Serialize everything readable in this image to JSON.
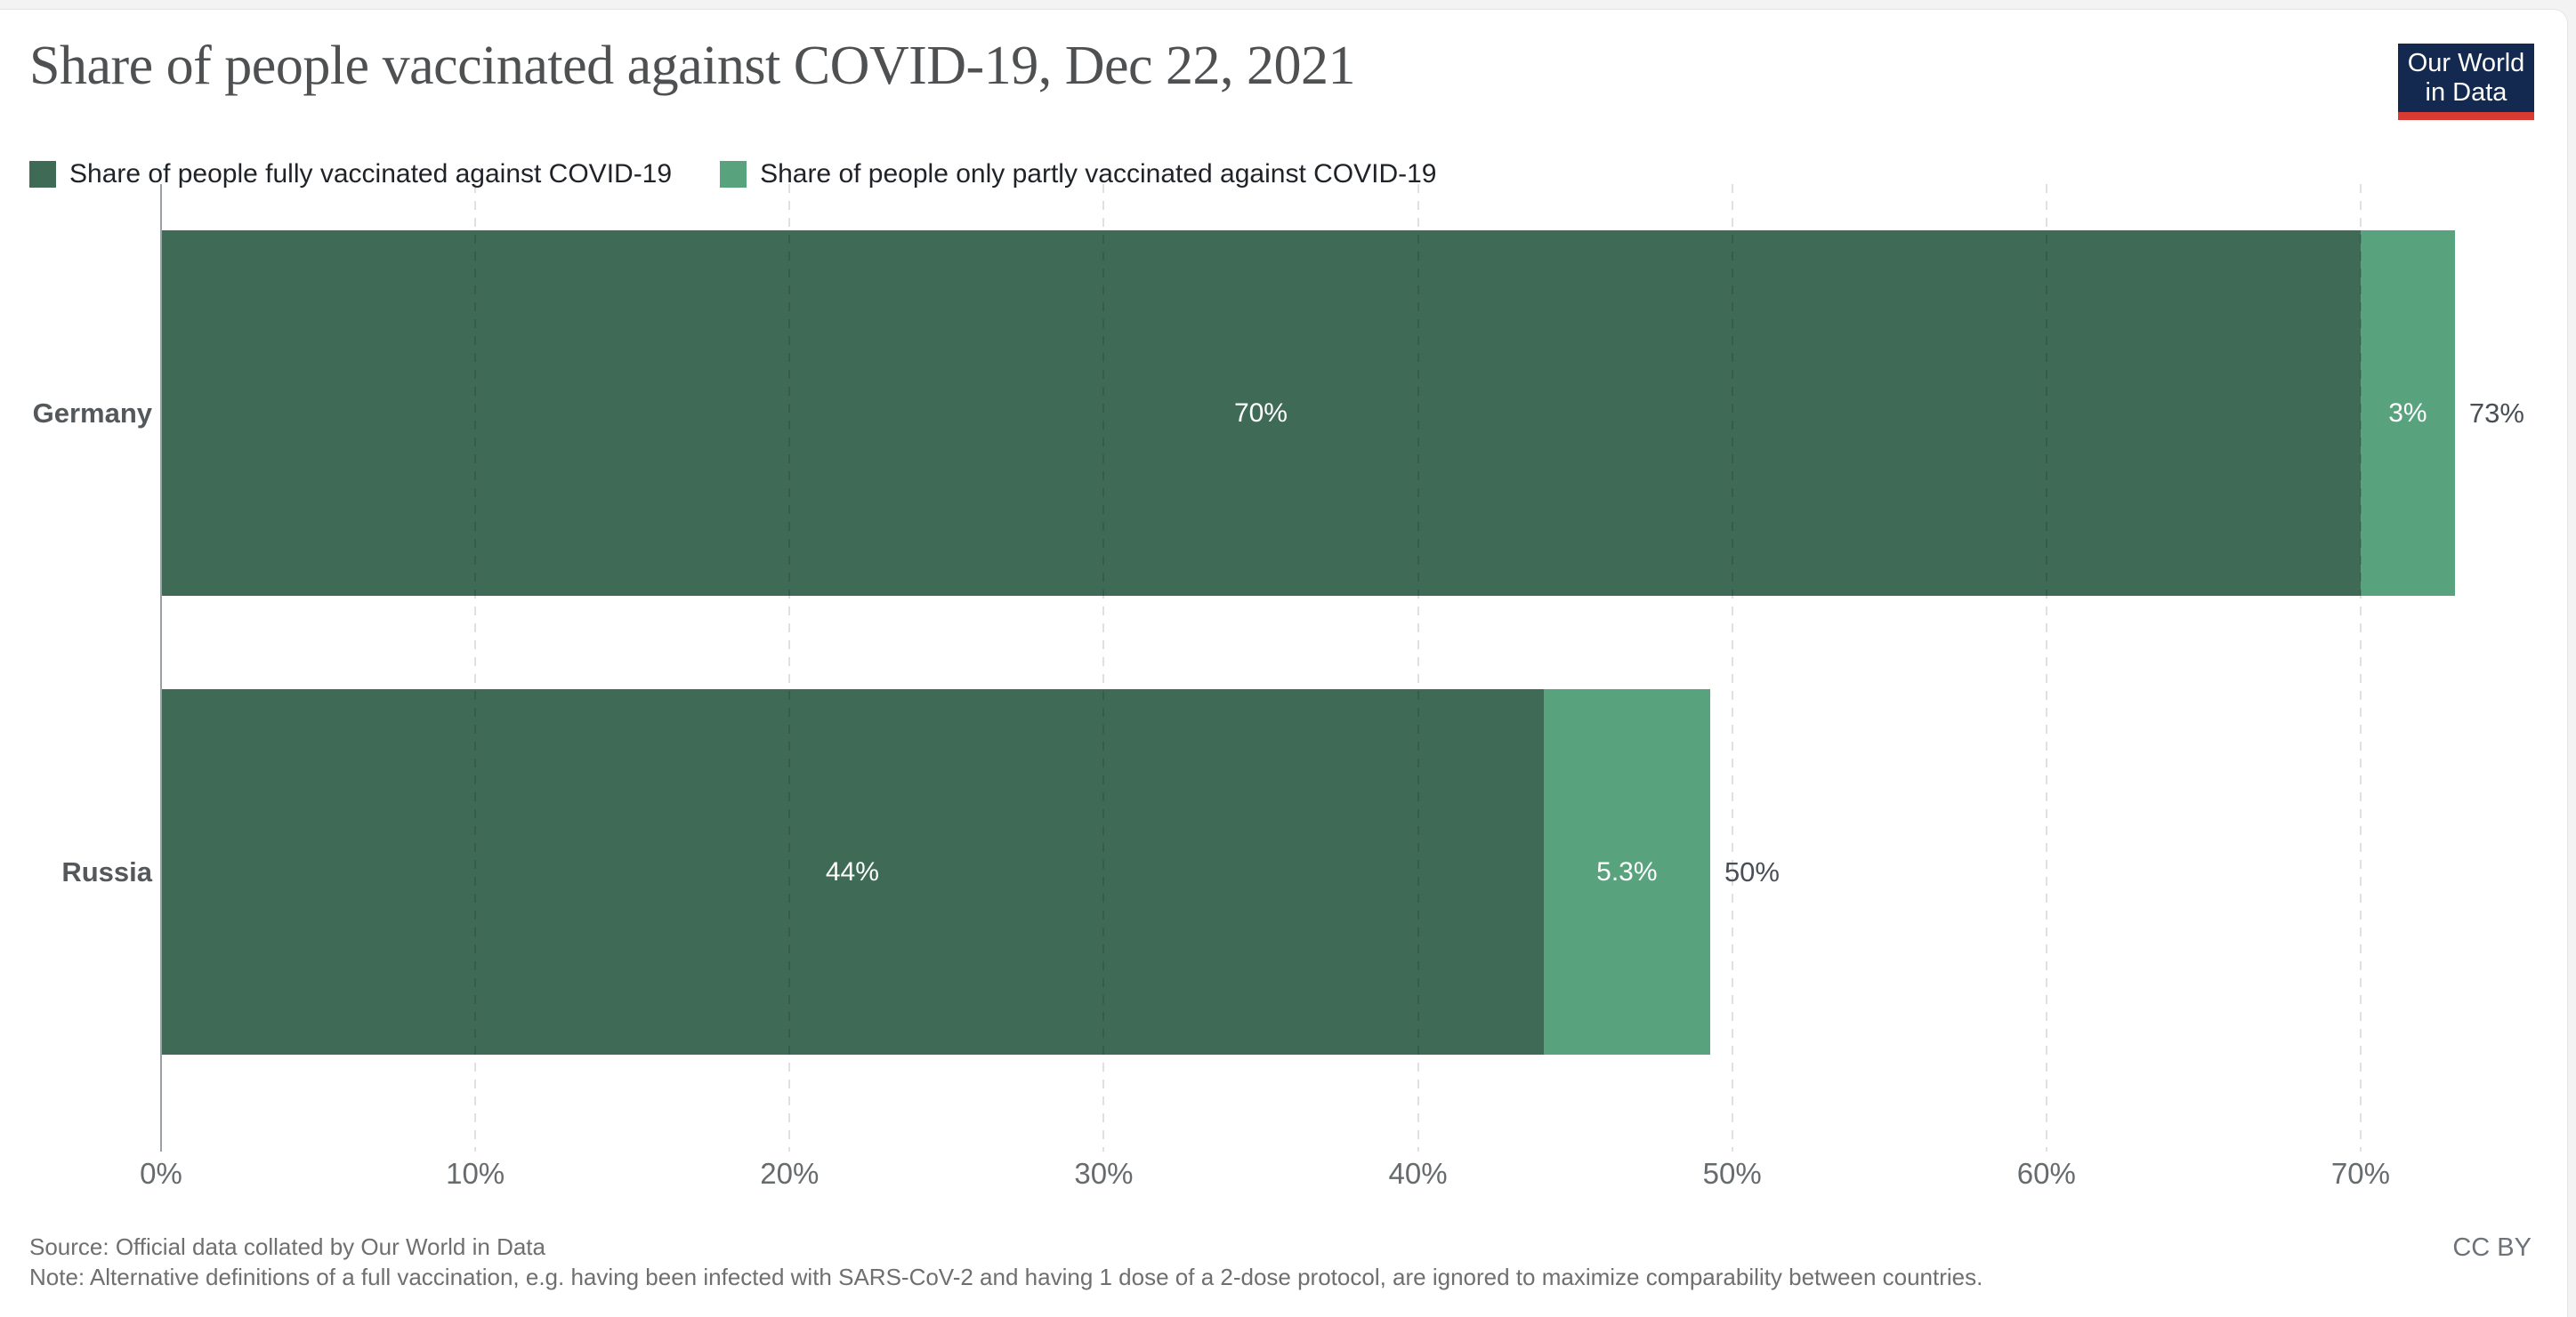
{
  "header": {
    "title": "Share of people vaccinated against COVID-19, Dec 22, 2021",
    "logo": {
      "line1": "Our World",
      "line2": "in Data",
      "background": "#13294f",
      "accent": "#d93a32"
    }
  },
  "legend": {
    "items": [
      {
        "label": "Share of people fully vaccinated against COVID-19",
        "color": "#3e6a56"
      },
      {
        "label": "Share of people only partly vaccinated against COVID-19",
        "color": "#58a27e"
      }
    ]
  },
  "chart_data": {
    "type": "bar",
    "orientation": "horizontal",
    "stacked": true,
    "categories": [
      "Germany",
      "Russia"
    ],
    "series": [
      {
        "name": "Share of people fully vaccinated against COVID-19",
        "color": "#3e6a56",
        "values": [
          70,
          44
        ],
        "labels": [
          "70%",
          "44%"
        ]
      },
      {
        "name": "Share of people only partly vaccinated against COVID-19",
        "color": "#58a27e",
        "values": [
          3,
          5.3
        ],
        "labels": [
          "3%",
          "5.3%"
        ]
      }
    ],
    "totals": [
      "73%",
      "50%"
    ],
    "total_values": [
      73,
      49.3
    ],
    "x_ticks": [
      "0%",
      "10%",
      "20%",
      "30%",
      "40%",
      "50%",
      "60%",
      "70%"
    ],
    "x_tick_values": [
      0,
      10,
      20,
      30,
      40,
      50,
      60,
      70
    ],
    "xlim": [
      0,
      76.6
    ],
    "grid": "dashed-vertical",
    "legend_position": "top"
  },
  "footer": {
    "source": "Source: Official data collated by Our World in Data",
    "note": "Note: Alternative definitions of a full vaccination, e.g. having been infected with SARS-CoV-2 and having 1 dose of a 2-dose protocol, are ignored to maximize comparability between countries.",
    "license": "CC BY"
  }
}
